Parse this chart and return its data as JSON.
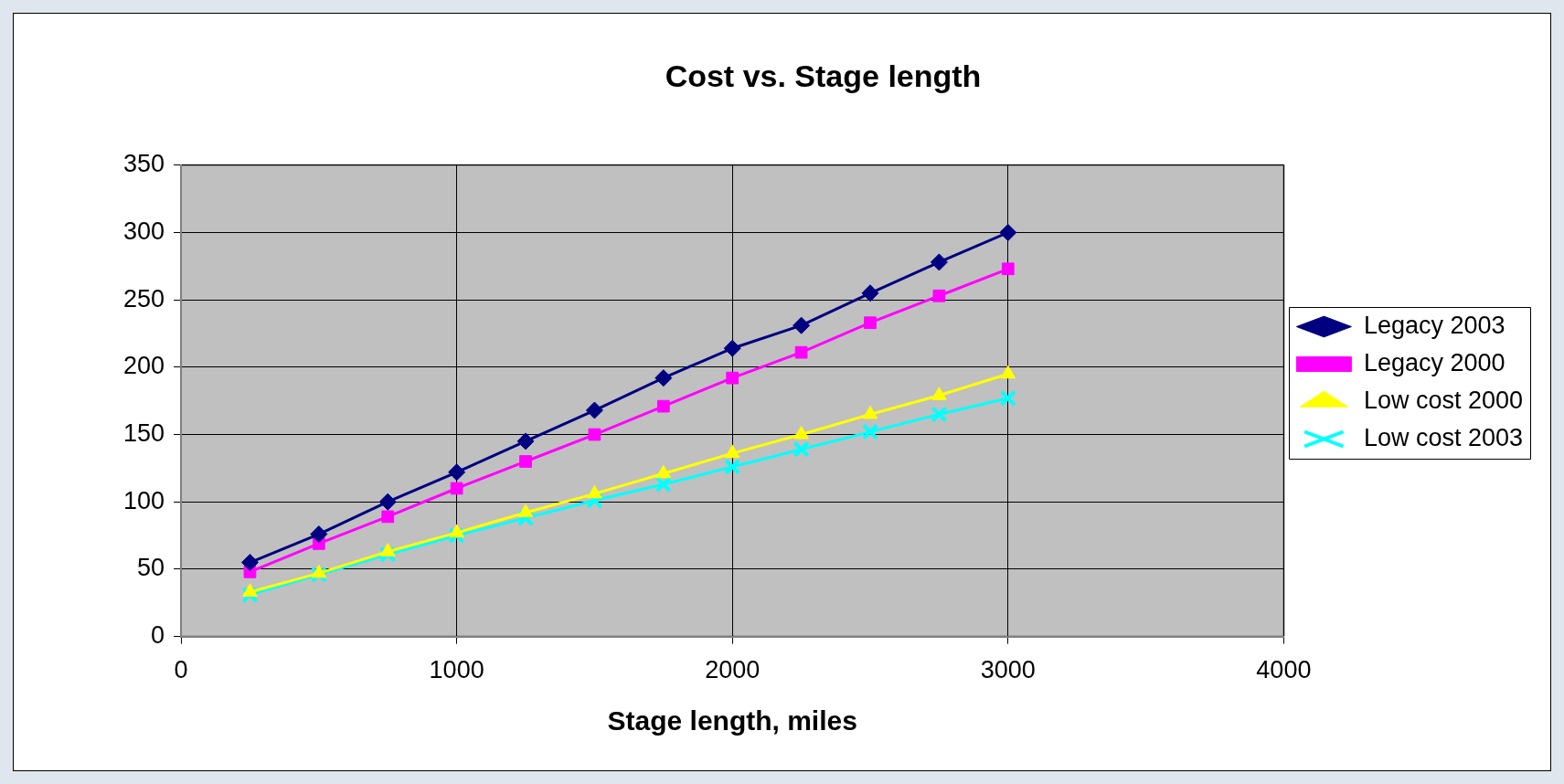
{
  "chart_data": {
    "type": "line",
    "title": "Cost vs. Stage length",
    "xlabel": "Stage length, miles",
    "x": [
      250,
      500,
      750,
      1000,
      1250,
      1500,
      1750,
      2000,
      2250,
      2500,
      2750,
      3000
    ],
    "xlim": [
      0,
      4000
    ],
    "xticks": [
      0,
      1000,
      2000,
      3000,
      4000
    ],
    "ylim": [
      0,
      350
    ],
    "yticks": [
      0,
      50,
      100,
      150,
      200,
      250,
      300,
      350
    ],
    "grid": true,
    "legend": "right",
    "line_style": "solid",
    "series": [
      {
        "name": "Legacy 2003",
        "color": "#000080",
        "marker": "diamond",
        "values": [
          55,
          76,
          100,
          122,
          145,
          168,
          192,
          214,
          231,
          255,
          278,
          300
        ]
      },
      {
        "name": "Legacy 2000",
        "color": "#ff00ff",
        "marker": "square",
        "values": [
          48,
          69,
          89,
          110,
          130,
          150,
          171,
          192,
          211,
          233,
          253,
          273
        ]
      },
      {
        "name": "Low cost 2000",
        "color": "#ffff00",
        "marker": "triangle",
        "values": [
          33,
          47,
          63,
          77,
          92,
          106,
          121,
          136,
          150,
          165,
          179,
          195
        ]
      },
      {
        "name": "Low cost 2003",
        "color": "#00ffff",
        "marker": "cross",
        "values": [
          31,
          46,
          61,
          75,
          88,
          101,
          113,
          126,
          139,
          152,
          165,
          177
        ]
      }
    ]
  }
}
